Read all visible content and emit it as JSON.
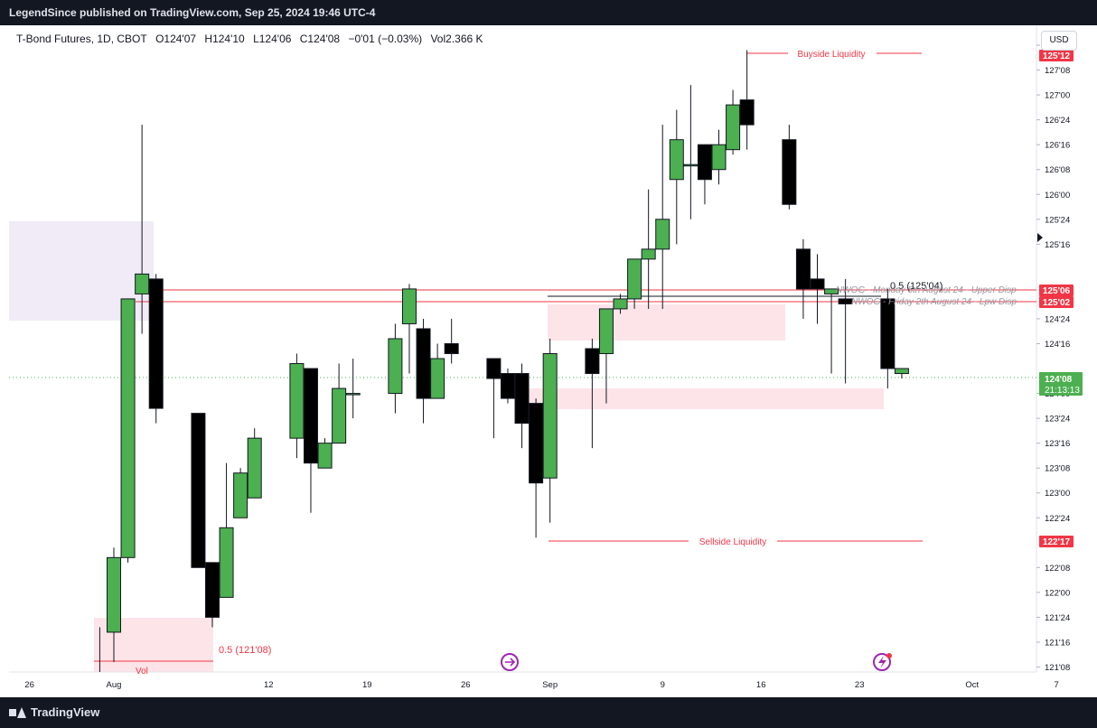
{
  "header": {
    "published": "LegendSince published on TradingView.com, Sep 25, 2024 19:46 UTC-4"
  },
  "legend": {
    "symbol": "T-Bond Futures, 1D, CBOT",
    "open": "O124'07",
    "high": "H124'10",
    "low": "L124'06",
    "close": "C124'08",
    "change": "−0'01 (−0.03%)",
    "volume": "Vol2.366 K"
  },
  "currency_button": "USD",
  "footer": {
    "brand": "TradingView"
  },
  "colors": {
    "up": "#4caf50",
    "down": "#000000",
    "liquidity": "#f23645",
    "zone": "#fde4e8",
    "purple_zone": "#ede7f6"
  },
  "chart_data": {
    "type": "candlestick",
    "ylim": [
      121.2,
      127.7
    ],
    "price_ticks": [
      "121'08",
      "121'16",
      "121'24",
      "122'00",
      "122'08",
      "122'24",
      "123'00",
      "123'08",
      "123'16",
      "123'24",
      "124'00",
      "124'16",
      "124'24",
      "125'16",
      "125'24",
      "126'00",
      "126'08",
      "126'16",
      "126'24",
      "127'00",
      "127'08",
      "127'16"
    ],
    "date_ticks": [
      {
        "label": "26",
        "day": -6
      },
      {
        "label": "Aug",
        "day": 0
      },
      {
        "label": "12",
        "day": 11
      },
      {
        "label": "19",
        "day": 18
      },
      {
        "label": "26",
        "day": 25
      },
      {
        "label": "Sep",
        "day": 31
      },
      {
        "label": "9",
        "day": 39
      },
      {
        "label": "16",
        "day": 46
      },
      {
        "label": "23",
        "day": 53
      },
      {
        "label": "Oct",
        "day": 61
      },
      {
        "label": "7",
        "day": 67
      }
    ],
    "candles": [
      {
        "day": -1,
        "o": null,
        "h": 121.65,
        "l": 121.2,
        "c": null
      },
      {
        "day": 0,
        "o": 121.6,
        "h": 122.45,
        "l": 121.3,
        "c": 122.35
      },
      {
        "day": 1,
        "o": 122.35,
        "h": 124.95,
        "l": 122.3,
        "c": 124.95
      },
      {
        "day": 2,
        "o": 125.0,
        "h": 126.7,
        "l": 124.6,
        "c": 125.2
      },
      {
        "day": 3,
        "o": 125.15,
        "h": 125.2,
        "l": 123.7,
        "c": 123.85
      },
      {
        "day": 6,
        "o": 123.8,
        "h": 123.8,
        "l": 122.25,
        "c": 122.25
      },
      {
        "day": 7,
        "o": 122.3,
        "h": 122.3,
        "l": 121.65,
        "c": 121.75
      },
      {
        "day": 8,
        "o": 121.95,
        "h": 123.3,
        "l": 121.95,
        "c": 122.65
      },
      {
        "day": 9,
        "o": 122.75,
        "h": 123.25,
        "l": 122.75,
        "c": 123.2
      },
      {
        "day": 10,
        "o": 122.95,
        "h": 123.65,
        "l": 122.95,
        "c": 123.55
      },
      {
        "day": 13,
        "o": 123.55,
        "h": 124.4,
        "l": 123.35,
        "c": 124.3
      },
      {
        "day": 14,
        "o": 124.25,
        "h": 124.25,
        "l": 122.8,
        "c": 123.3
      },
      {
        "day": 15,
        "o": 123.25,
        "h": 123.55,
        "l": 123.25,
        "c": 123.5
      },
      {
        "day": 16,
        "o": 123.5,
        "h": 124.3,
        "l": 123.5,
        "c": 124.05
      },
      {
        "day": 17,
        "o": 124.0,
        "h": 124.35,
        "l": 123.75,
        "c": 124.0
      },
      {
        "day": 20,
        "o": 124.0,
        "h": 124.7,
        "l": 123.8,
        "c": 124.55
      },
      {
        "day": 21,
        "o": 124.7,
        "h": 125.1,
        "l": 124.2,
        "c": 125.05
      },
      {
        "day": 22,
        "o": 124.65,
        "h": 124.75,
        "l": 123.7,
        "c": 123.95
      },
      {
        "day": 23,
        "o": 123.95,
        "h": 124.5,
        "l": 123.95,
        "c": 124.35
      },
      {
        "day": 24,
        "o": 124.5,
        "h": 124.75,
        "l": 124.3,
        "c": 124.4
      },
      {
        "day": 27,
        "o": 124.35,
        "h": 124.35,
        "l": 123.55,
        "c": 124.15
      },
      {
        "day": 28,
        "o": 124.2,
        "h": 124.25,
        "l": 123.9,
        "c": 123.95
      },
      {
        "day": 29,
        "o": 124.2,
        "h": 124.3,
        "l": 123.45,
        "c": 123.7
      },
      {
        "day": 30,
        "o": 123.9,
        "h": 123.95,
        "l": 122.55,
        "c": 123.1
      },
      {
        "day": 31,
        "o": 123.15,
        "h": 124.55,
        "l": 122.7,
        "c": 124.4
      },
      {
        "day": 34,
        "o": 124.45,
        "h": 124.55,
        "l": 123.45,
        "c": 124.2
      },
      {
        "day": 35,
        "o": 124.4,
        "h": 124.8,
        "l": 123.9,
        "c": 124.85
      },
      {
        "day": 36,
        "o": 124.85,
        "h": 125.0,
        "l": 124.8,
        "c": 124.95
      },
      {
        "day": 37,
        "o": 124.95,
        "h": 125.35,
        "l": 124.85,
        "c": 125.35
      },
      {
        "day": 38,
        "o": 125.35,
        "h": 126.05,
        "l": 124.85,
        "c": 125.45
      },
      {
        "day": 39,
        "o": 125.45,
        "h": 126.7,
        "l": 124.85,
        "c": 125.75
      },
      {
        "day": 40,
        "o": 126.15,
        "h": 126.85,
        "l": 125.5,
        "c": 126.55
      },
      {
        "day": 41,
        "o": 126.3,
        "h": 127.1,
        "l": 125.75,
        "c": 126.3
      },
      {
        "day": 42,
        "o": 126.5,
        "h": 126.5,
        "l": 125.9,
        "c": 126.15
      },
      {
        "day": 43,
        "o": 126.25,
        "h": 126.65,
        "l": 126.1,
        "c": 126.5
      },
      {
        "day": 44,
        "o": 126.45,
        "h": 127.05,
        "l": 126.4,
        "c": 126.9
      },
      {
        "day": 45,
        "o": 126.95,
        "h": 127.45,
        "l": 126.45,
        "c": 126.7
      },
      {
        "day": 48,
        "o": 126.55,
        "h": 126.7,
        "l": 125.85,
        "c": 125.9
      },
      {
        "day": 49,
        "o": 125.45,
        "h": 125.55,
        "l": 124.75,
        "c": 125.05
      },
      {
        "day": 50,
        "o": 125.15,
        "h": 125.4,
        "l": 124.7,
        "c": 125.05
      },
      {
        "day": 51,
        "o": 125.0,
        "h": 125.05,
        "l": 124.2,
        "c": 125.05
      },
      {
        "day": 52,
        "o": 124.95,
        "h": 125.15,
        "l": 124.1,
        "c": 124.9
      },
      {
        "day": 55,
        "o": 124.95,
        "h": 125.05,
        "l": 124.05,
        "c": 124.25
      },
      {
        "day": 56,
        "o": 124.2,
        "h": 124.25,
        "l": 124.15,
        "c": 124.25
      }
    ],
    "last_price": {
      "price": "124'08",
      "countdown": "21:13:13"
    },
    "tagged_prices": {
      "top": "125'12",
      "nwog_upper": "125'06",
      "nwog_lower": "125'02",
      "ssl": "122'17",
      "bsl_axis": "125'24"
    },
    "annotations": {
      "buyside": "Buyside Liquidity",
      "sellside": "Sellside Liquidity",
      "half_upper": "0.5 (125'04)",
      "half_lower": "0.5 (121'08)",
      "nwog1": "NWOG - Monday 5th August 24 - Upper Disp",
      "nwog2": "NWOG - Friday 2th August 24 - Lpw Disp",
      "vol_fragment": "Vol"
    }
  }
}
